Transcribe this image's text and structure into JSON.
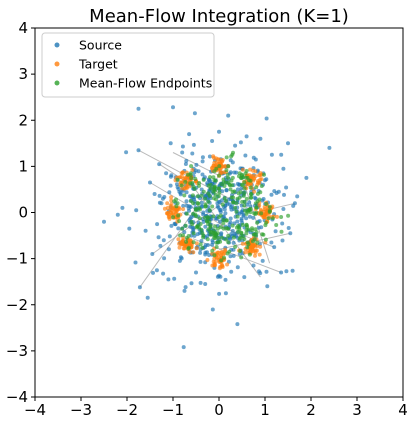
{
  "chart_data": {
    "type": "scatter",
    "title": "Mean-Flow Integration (K=1)",
    "xlabel": "",
    "ylabel": "",
    "xlim": [
      -4,
      4
    ],
    "ylim": [
      -4,
      4
    ],
    "xticks": [
      -4,
      -3,
      -2,
      -1,
      0,
      1,
      2,
      3,
      4
    ],
    "yticks": [
      -4,
      -3,
      -2,
      -1,
      0,
      1,
      2,
      3,
      4
    ],
    "grid": false,
    "legend_position": "top-left",
    "series": [
      {
        "name": "Source",
        "color": "#1f77b4",
        "distribution": "standard normal, approx 500 samples",
        "points": [
          [
            -2.5,
            -0.2
          ],
          [
            -2.2,
            -0.05
          ],
          [
            -2.1,
            0.1
          ],
          [
            -1.95,
            -0.35
          ],
          [
            -1.8,
            0.05
          ],
          [
            -1.75,
            2.25
          ],
          [
            -1.75,
            1.35
          ],
          [
            -1.72,
            -1.62
          ],
          [
            -1.55,
            -1.85
          ],
          [
            -1.5,
            0.65
          ],
          [
            -1.45,
            -0.9
          ],
          [
            -1.4,
            0.4
          ],
          [
            -1.35,
            -1.25
          ],
          [
            -1.3,
            1.05
          ],
          [
            -1.25,
            0.2
          ],
          [
            -1.2,
            -0.6
          ],
          [
            -1.15,
            0.85
          ],
          [
            -1.1,
            -1.45
          ],
          [
            -1.05,
            1.5
          ],
          [
            -1.0,
            2.28
          ],
          [
            -0.95,
            -0.25
          ],
          [
            -0.9,
            0.55
          ],
          [
            -0.85,
            -1.05
          ],
          [
            -0.8,
            1.3
          ],
          [
            -0.75,
            -1.7
          ],
          [
            -0.7,
            0.15
          ],
          [
            -0.65,
            1.7
          ],
          [
            -0.6,
            -0.5
          ],
          [
            -0.55,
            0.95
          ],
          [
            -0.5,
            -1.3
          ],
          [
            -0.45,
            0.35
          ],
          [
            -0.4,
            -0.8
          ],
          [
            -0.35,
            1.2
          ],
          [
            -0.3,
            -1.55
          ],
          [
            -0.25,
            0.6
          ],
          [
            -0.2,
            -0.15
          ],
          [
            -0.15,
            1.55
          ],
          [
            -0.1,
            -1.2
          ],
          [
            0.0,
            1.75
          ],
          [
            0.05,
            -0.45
          ],
          [
            0.1,
            0.85
          ],
          [
            0.15,
            -1.75
          ],
          [
            0.2,
            2.1
          ],
          [
            0.25,
            -0.95
          ],
          [
            0.3,
            0.25
          ],
          [
            0.35,
            1.45
          ],
          [
            0.4,
            -2.42
          ],
          [
            0.45,
            -0.3
          ],
          [
            0.5,
            0.95
          ],
          [
            0.55,
            -1.4
          ],
          [
            0.6,
            1.65
          ],
          [
            0.65,
            -0.65
          ],
          [
            0.7,
            0.45
          ],
          [
            0.75,
            -1.15
          ],
          [
            0.8,
            1.15
          ],
          [
            0.85,
            -0.2
          ],
          [
            0.9,
            1.6
          ],
          [
            0.95,
            -1.05
          ],
          [
            1.0,
            0.7
          ],
          [
            1.05,
            -1.6
          ],
          [
            1.1,
            0.1
          ],
          [
            1.15,
            1.25
          ],
          [
            1.2,
            -0.75
          ],
          [
            1.3,
            0.45
          ],
          [
            1.35,
            -1.3
          ],
          [
            1.4,
            0.95
          ],
          [
            1.5,
            1.5
          ],
          [
            1.55,
            -0.45
          ],
          [
            1.65,
            0.2
          ],
          [
            1.7,
            0.35
          ],
          [
            1.9,
            0.75
          ],
          [
            2.4,
            1.4
          ],
          [
            -0.6,
            -0.1
          ],
          [
            0.6,
            0.05
          ],
          [
            -0.3,
            0.35
          ],
          [
            0.3,
            -0.4
          ],
          [
            -0.8,
            -0.35
          ],
          [
            0.8,
            0.3
          ],
          [
            -0.15,
            -0.7
          ],
          [
            0.15,
            0.75
          ]
        ]
      },
      {
        "name": "Target",
        "color": "#ff7f0e",
        "distribution": "8 gaussian clusters on a ring of radius 1",
        "cluster_centers": [
          [
            1.0,
            0.0
          ],
          [
            0.71,
            0.71
          ],
          [
            0.0,
            1.0
          ],
          [
            -0.71,
            0.71
          ],
          [
            -1.0,
            0.0
          ],
          [
            -0.71,
            -0.71
          ],
          [
            0.0,
            -1.0
          ],
          [
            0.71,
            -0.71
          ]
        ],
        "cluster_std": 0.1
      },
      {
        "name": "Mean-Flow Endpoints",
        "color": "#2ca02c",
        "distribution": "dense cloud concentrated near the target ring, center and upper-right",
        "points": [
          [
            0.0,
            0.8
          ],
          [
            0.2,
            1.0
          ],
          [
            0.3,
            0.75
          ],
          [
            0.5,
            0.6
          ],
          [
            0.6,
            0.9
          ],
          [
            0.7,
            0.4
          ],
          [
            0.4,
            0.3
          ],
          [
            0.8,
            0.2
          ],
          [
            0.55,
            0.15
          ],
          [
            0.25,
            0.5
          ],
          [
            -0.1,
            0.5
          ],
          [
            -0.3,
            0.3
          ],
          [
            -0.5,
            0.05
          ],
          [
            -0.6,
            -0.2
          ],
          [
            -0.8,
            -0.35
          ],
          [
            -1.0,
            -0.1
          ],
          [
            -0.9,
            0.2
          ],
          [
            -0.7,
            -0.55
          ],
          [
            -0.4,
            -0.25
          ],
          [
            -0.2,
            0.05
          ],
          [
            0.0,
            -0.1
          ],
          [
            0.15,
            0.25
          ],
          [
            0.35,
            0.1
          ],
          [
            0.1,
            -0.35
          ],
          [
            -0.1,
            -0.5
          ],
          [
            -0.55,
            -0.45
          ],
          [
            0.65,
            0.7
          ],
          [
            0.45,
            0.85
          ],
          [
            0.15,
            0.65
          ],
          [
            -0.25,
            -0.1
          ]
        ]
      }
    ],
    "annotations": "gray line segments connect source samples to their mean-flow endpoints"
  }
}
